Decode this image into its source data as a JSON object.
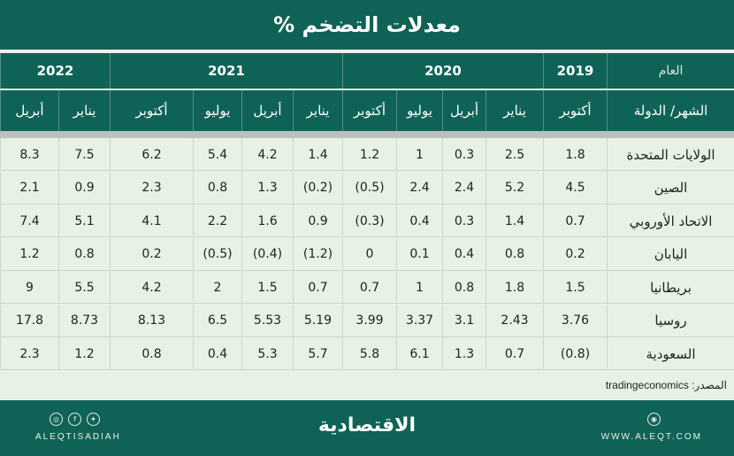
{
  "title": "معدلات التضخم %",
  "header": {
    "year_label": "العام",
    "month_label": "الشهر/ الدولة",
    "years": [
      "2019",
      "2020",
      "2021",
      "2022"
    ],
    "months": [
      "أكتوبر",
      "يناير",
      "أبريل",
      "يوليو",
      "أكتوبر",
      "يناير",
      "أبريل",
      "يوليو",
      "أكتوبر",
      "يناير",
      "أبريل"
    ]
  },
  "rows": [
    {
      "country": "الولايات المتحدة",
      "values": [
        "1.8",
        "2.5",
        "0.3",
        "1",
        "1.2",
        "1.4",
        "4.2",
        "5.4",
        "6.2",
        "7.5",
        "8.3"
      ]
    },
    {
      "country": "الصين",
      "values": [
        "4.5",
        "5.2",
        "2.4",
        "2.4",
        "(0.5)",
        "(0.2)",
        "1.3",
        "0.8",
        "2.3",
        "0.9",
        "2.1"
      ]
    },
    {
      "country": "الاتحاد الأوروبي",
      "values": [
        "0.7",
        "1.4",
        "0.3",
        "0.4",
        "(0.3)",
        "0.9",
        "1.6",
        "2.2",
        "4.1",
        "5.1",
        "7.4"
      ]
    },
    {
      "country": "اليابان",
      "values": [
        "0.2",
        "0.8",
        "0.4",
        "0.1",
        "0",
        "(1.2)",
        "(0.4)",
        "(0.5)",
        "0.2",
        "0.8",
        "1.2"
      ]
    },
    {
      "country": "بريطانيا",
      "values": [
        "1.5",
        "1.8",
        "0.8",
        "1",
        "0.7",
        "0.7",
        "1.5",
        "2",
        "4.2",
        "5.5",
        "9"
      ]
    },
    {
      "country": "روسيا",
      "values": [
        "3.76",
        "2.43",
        "3.1",
        "3.37",
        "3.99",
        "5.19",
        "5.53",
        "6.5",
        "8.13",
        "8.73",
        "17.8"
      ]
    },
    {
      "country": "السعودية",
      "values": [
        "(0.8)",
        "0.7",
        "1.3",
        "6.1",
        "5.8",
        "5.7",
        "5.3",
        "0.4",
        "0.8",
        "1.2",
        "2.3"
      ]
    }
  ],
  "source": "المصدر: tradingeconomics",
  "footer": {
    "brand_left": "ALEQTISADIAH",
    "logo": "الاقتصادية",
    "website": "WWW.ALEQT.COM",
    "social_icons": [
      "instagram-icon",
      "facebook-icon",
      "twitter-icon"
    ],
    "web_icon": "globe-icon"
  },
  "colors": {
    "primary": "#0f6356",
    "background": "#e8f1e6",
    "separator": "#bfbfbf"
  }
}
